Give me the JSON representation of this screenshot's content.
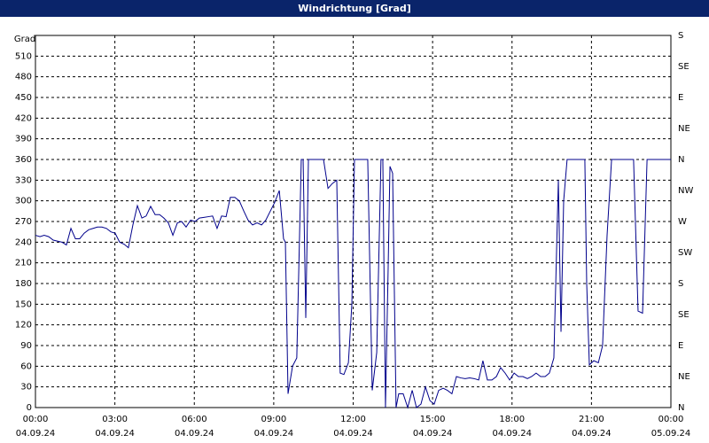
{
  "chart_data": {
    "type": "line",
    "title": "Windrichtung [Grad]",
    "ylabel": "Grad",
    "x": [
      0,
      0.17,
      0.33,
      0.5,
      0.67,
      1.0,
      1.17,
      1.34,
      1.51,
      1.67,
      1.84,
      2.01,
      2.18,
      2.34,
      2.51,
      2.68,
      2.85,
      3.01,
      3.18,
      3.35,
      3.51,
      3.68,
      3.85,
      4.02,
      4.18,
      4.35,
      4.52,
      4.69,
      4.85,
      5.02,
      5.19,
      5.36,
      5.52,
      5.69,
      5.86,
      6.03,
      6.19,
      6.36,
      6.53,
      6.69,
      6.86,
      7.03,
      7.2,
      7.36,
      7.53,
      7.7,
      7.87,
      8.03,
      8.2,
      8.37,
      8.54,
      8.7,
      8.87,
      9.04,
      9.21,
      9.37,
      9.44,
      9.54,
      9.71,
      9.87,
      10.04,
      10.11,
      10.21,
      10.31,
      10.44,
      10.71,
      10.88,
      11.05,
      11.21,
      11.38,
      11.51,
      11.65,
      11.82,
      11.95,
      12.05,
      12.38,
      12.55,
      12.72,
      12.89,
      13.05,
      13.12,
      13.22,
      13.32,
      13.39,
      13.49,
      13.62,
      13.72,
      13.89,
      14.06,
      14.23,
      14.39,
      14.56,
      14.73,
      14.9,
      15.06,
      15.23,
      15.4,
      15.56,
      15.73,
      15.9,
      16.07,
      16.23,
      16.4,
      16.57,
      16.74,
      16.9,
      17.07,
      17.24,
      17.41,
      17.57,
      17.74,
      17.91,
      18.08,
      18.24,
      18.41,
      18.58,
      18.74,
      18.91,
      19.08,
      19.25,
      19.41,
      19.58,
      19.75,
      19.85,
      19.95,
      20.08,
      20.42,
      20.75,
      20.82,
      20.92,
      21.09,
      21.26,
      21.42,
      21.59,
      21.76,
      22.09,
      22.43,
      22.59,
      22.76,
      22.93,
      23.1,
      23.43,
      24
    ],
    "series": [
      {
        "name": "Windrichtung",
        "color": "#00008b",
        "values": [
          250,
          248,
          250,
          248,
          243,
          240,
          236,
          260,
          245,
          245,
          253,
          258,
          260,
          262,
          262,
          260,
          255,
          253,
          240,
          237,
          232,
          265,
          293,
          275,
          278,
          292,
          280,
          280,
          275,
          268,
          250,
          268,
          270,
          262,
          272,
          270,
          275,
          276,
          277,
          278,
          260,
          278,
          277,
          305,
          305,
          300,
          285,
          272,
          265,
          268,
          265,
          272,
          285,
          298,
          315,
          245,
          240,
          20,
          60,
          72,
          360,
          360,
          130,
          360,
          360,
          360,
          360,
          318,
          325,
          330,
          50,
          48,
          65,
          150,
          360,
          360,
          360,
          25,
          80,
          360,
          360,
          0,
          200,
          350,
          340,
          0,
          20,
          20,
          0,
          25,
          0,
          5,
          30,
          10,
          5,
          25,
          28,
          25,
          20,
          45,
          43,
          42,
          43,
          42,
          40,
          68,
          40,
          40,
          45,
          58,
          50,
          40,
          50,
          45,
          45,
          42,
          45,
          50,
          45,
          45,
          50,
          72,
          330,
          110,
          300,
          360,
          360,
          360,
          180,
          62,
          68,
          65,
          90,
          250,
          360,
          360,
          360,
          360,
          140,
          137,
          360,
          360,
          360
        ]
      }
    ],
    "xlim": [
      0,
      24
    ],
    "xticks": [
      {
        "value": 0,
        "label": "00:00"
      },
      {
        "value": 3,
        "label": "03:00"
      },
      {
        "value": 6,
        "label": "06:00"
      },
      {
        "value": 9,
        "label": "09:00"
      },
      {
        "value": 12,
        "label": "12:00"
      },
      {
        "value": 15,
        "label": "15:00"
      },
      {
        "value": 18,
        "label": "18:00"
      },
      {
        "value": 21,
        "label": "21:00"
      },
      {
        "value": 24,
        "label": "00:00"
      }
    ],
    "xtick_dates": [
      "04.09.24",
      "04.09.24",
      "04.09.24",
      "04.09.24",
      "04.09.24",
      "04.09.24",
      "04.09.24",
      "04.09.24",
      "05.09.24"
    ],
    "ylim": [
      0,
      540
    ],
    "yticks": [
      0,
      30,
      60,
      90,
      120,
      150,
      180,
      210,
      240,
      270,
      300,
      330,
      360,
      390,
      420,
      450,
      480,
      510
    ],
    "y2lim": [
      0,
      540
    ],
    "y2ticks": [
      {
        "value": 0,
        "label": "N"
      },
      {
        "value": 45,
        "label": "NE"
      },
      {
        "value": 90,
        "label": "E"
      },
      {
        "value": 135,
        "label": "SE"
      },
      {
        "value": 180,
        "label": "S"
      },
      {
        "value": 225,
        "label": "SW"
      },
      {
        "value": 270,
        "label": "W"
      },
      {
        "value": 315,
        "label": "NW"
      },
      {
        "value": 360,
        "label": "N"
      },
      {
        "value": 405,
        "label": "NE"
      },
      {
        "value": 450,
        "label": "E"
      },
      {
        "value": 495,
        "label": "SE"
      },
      {
        "value": 540,
        "label": "S"
      }
    ],
    "grid": true
  }
}
